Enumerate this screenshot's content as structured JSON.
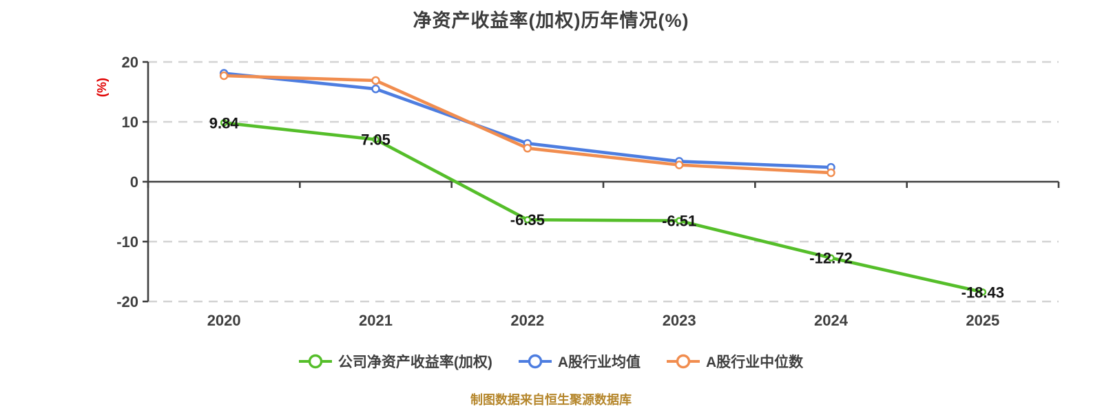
{
  "chart_data": {
    "type": "line",
    "title": "净资产收益率(加权)历年情况(%)",
    "ylabel": "(%)",
    "ylabel_color": "#e00000",
    "footer": "制图数据来自恒生聚源数据库",
    "categories": [
      "2020",
      "2021",
      "2022",
      "2023",
      "2024",
      "2025"
    ],
    "yticks": [
      20,
      10,
      0,
      -10,
      -20
    ],
    "ylim": [
      -20,
      20
    ],
    "grid": "horizontal-dashed",
    "legend_position": "bottom",
    "colors": {
      "grid": "#d3d3d3",
      "axis": "#3f3f3f",
      "tick_text": "#3f3f3f",
      "data_label": "#141414",
      "marker_fill": "#ffffff"
    },
    "series": [
      {
        "name": "公司净资产收益率(加权)",
        "color": "#55be2a",
        "values": [
          9.84,
          7.05,
          -6.35,
          -6.51,
          -12.72,
          -18.43
        ],
        "labels": [
          "9.84",
          "7.05",
          "-6.35",
          "-6.51",
          "-12.72",
          "-18.43"
        ]
      },
      {
        "name": "A股行业均值",
        "color": "#4d7de0",
        "values": [
          18.1,
          15.5,
          6.4,
          3.4,
          2.4,
          null
        ]
      },
      {
        "name": "A股行业中位数",
        "color": "#f18d4f",
        "values": [
          17.7,
          16.9,
          5.6,
          2.8,
          1.5,
          null
        ]
      }
    ]
  }
}
